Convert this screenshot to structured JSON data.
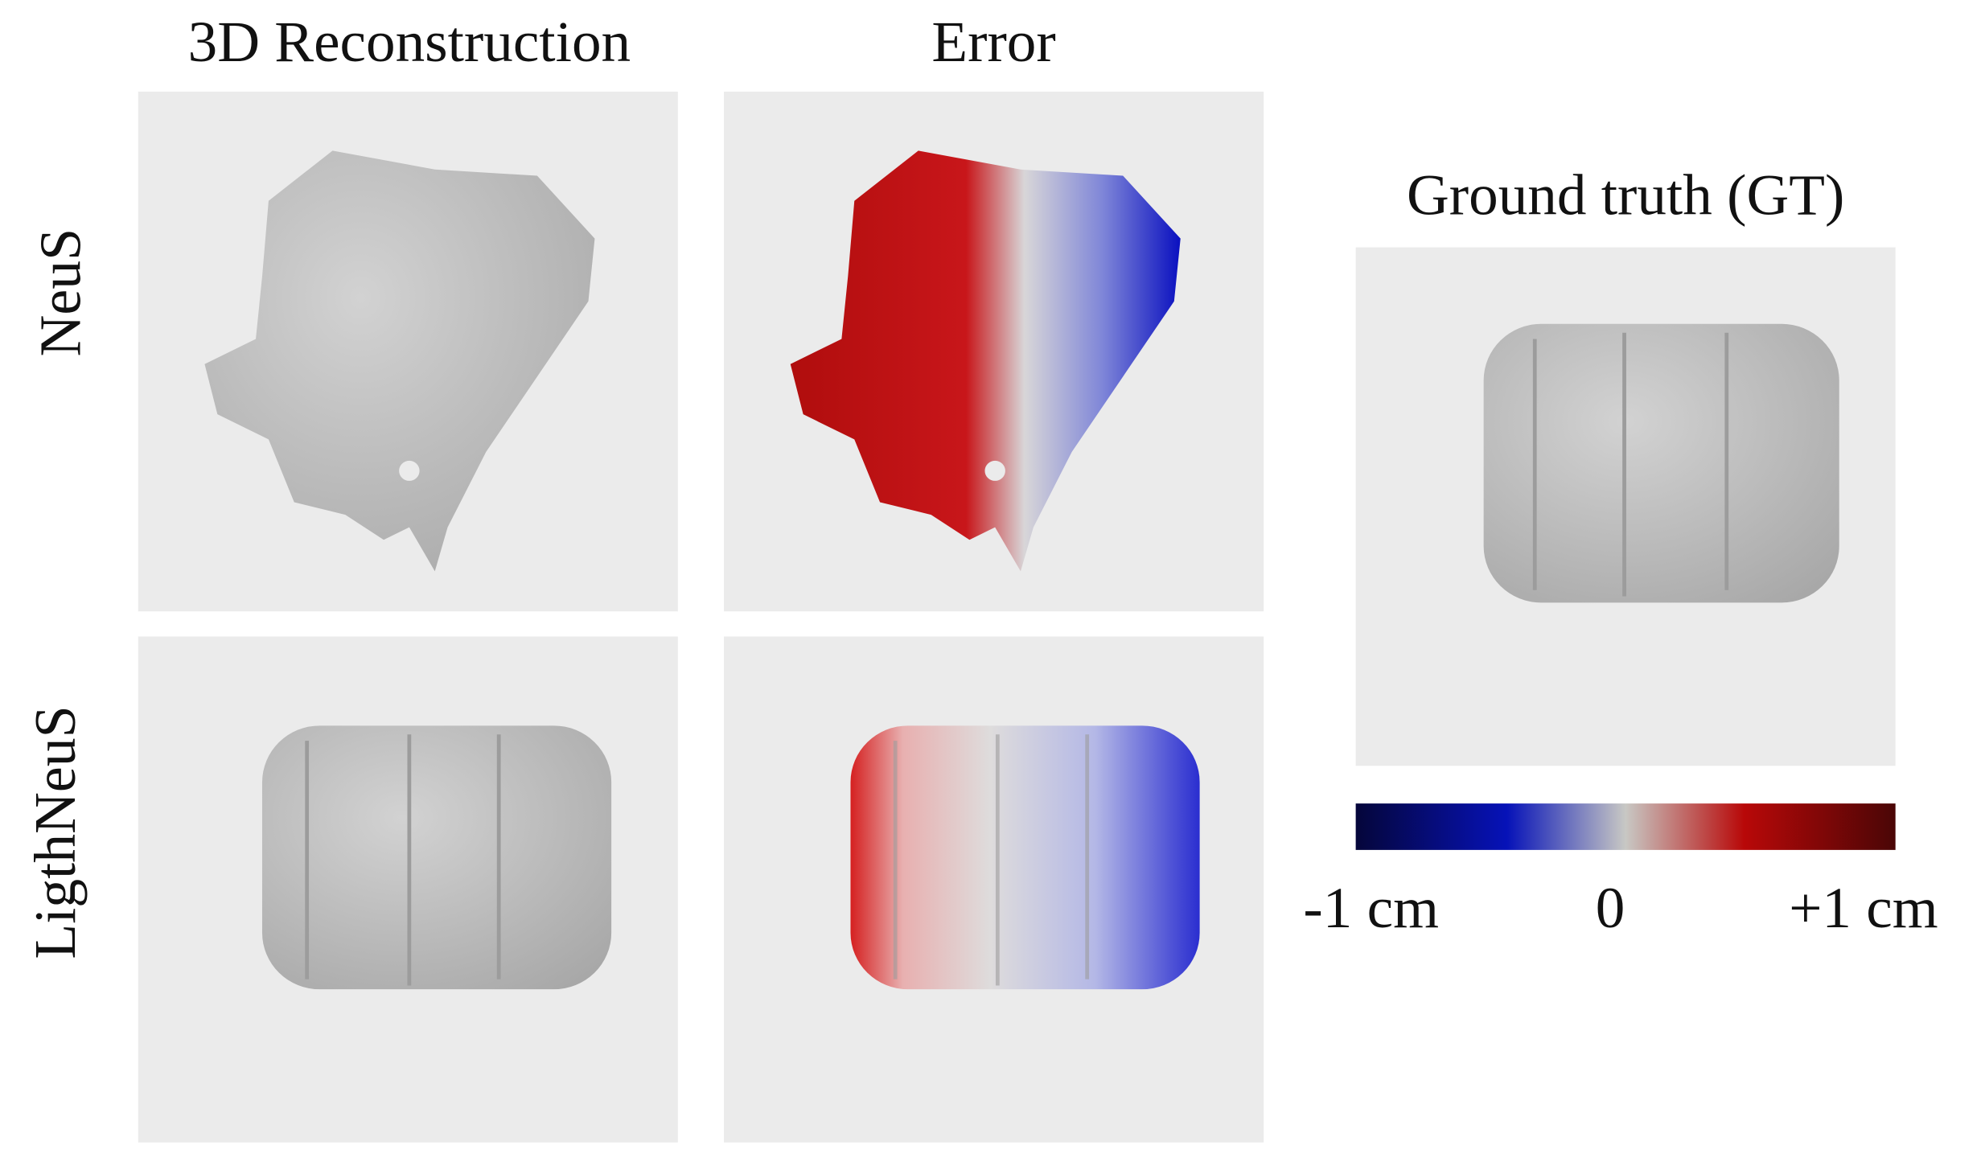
{
  "column_headers": [
    "3D Reconstruction",
    "Error"
  ],
  "row_labels": [
    "NeuS",
    "LigthNeuS"
  ],
  "ground_truth": {
    "title": "Ground truth (GT)"
  },
  "colorbar": {
    "labels": [
      "-1 cm",
      "0",
      "+1 cm"
    ]
  }
}
